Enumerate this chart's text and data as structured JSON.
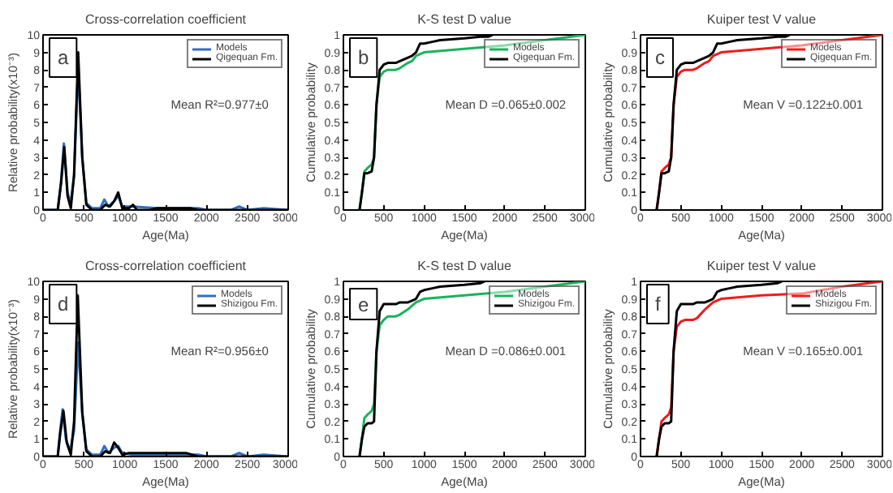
{
  "chart_data": [
    {
      "type": "line",
      "title": "Cross-correlation coefficient",
      "xlabel": "Age(Ma)",
      "ylabel": "Relative probability(x10⁻³)",
      "xlim": [
        0,
        3000
      ],
      "ylim": [
        0,
        10
      ],
      "xticks": [
        0,
        500,
        1000,
        1500,
        2000,
        2500,
        3000
      ],
      "yticks": [
        0,
        1,
        2,
        3,
        4,
        5,
        6,
        7,
        8,
        9,
        10
      ],
      "legend": "top right",
      "annotations": [
        "a",
        "Mean R²=0.977±0"
      ],
      "series": [
        {
          "name": "Models",
          "color": "#2f6ec0",
          "x": [
            0,
            180,
            220,
            255,
            300,
            340,
            380,
            430,
            480,
            530,
            600,
            700,
            750,
            800,
            870,
            920,
            970,
            1100,
            1400,
            1600,
            1900,
            2000,
            2300,
            2400,
            2500,
            2700,
            3000
          ],
          "values": [
            0,
            0,
            1.6,
            3.8,
            1.0,
            0.4,
            2,
            8.2,
            3,
            0.4,
            0.1,
            0.1,
            0.6,
            0.2,
            0.5,
            0.8,
            0.2,
            0.2,
            0.1,
            0.1,
            0.1,
            0,
            0,
            0.2,
            0,
            0.1,
            0
          ]
        },
        {
          "name": "Qigequan Fm.",
          "color": "#000000",
          "x": [
            0,
            180,
            220,
            260,
            300,
            340,
            380,
            430,
            480,
            530,
            600,
            700,
            760,
            820,
            870,
            920,
            970,
            1050,
            1100,
            1150,
            1300,
            1400,
            1600,
            1700,
            1800,
            1900,
            2000,
            3000
          ],
          "values": [
            0,
            0,
            1.5,
            3.6,
            0.8,
            0.1,
            2,
            9.0,
            3,
            0.3,
            0,
            0,
            0.3,
            0.2,
            0.5,
            1.0,
            0.1,
            0.1,
            0.3,
            0,
            0,
            0.1,
            0.1,
            0.1,
            0.1,
            0,
            0,
            0
          ]
        }
      ]
    },
    {
      "type": "line",
      "title": "K-S test D value",
      "xlabel": "Age(Ma)",
      "ylabel": "Cumulative probability",
      "xlim": [
        0,
        3000
      ],
      "ylim": [
        0,
        1
      ],
      "xticks": [
        0,
        500,
        1000,
        1500,
        2000,
        2500,
        3000
      ],
      "yticks": [
        0,
        0.1,
        0.2,
        0.3,
        0.4,
        0.5,
        0.6,
        0.7,
        0.8,
        0.9,
        1
      ],
      "legend": "top right",
      "annotations": [
        "b",
        "Mean D =0.065±0.002"
      ],
      "series": [
        {
          "name": "Models",
          "color": "#19b35a",
          "x": [
            200,
            230,
            260,
            300,
            350,
            380,
            410,
            450,
            500,
            550,
            650,
            700,
            800,
            850,
            900,
            1000,
            1500,
            2000,
            2500,
            3000
          ],
          "values": [
            0,
            0.1,
            0.22,
            0.24,
            0.26,
            0.3,
            0.6,
            0.76,
            0.79,
            0.8,
            0.8,
            0.81,
            0.84,
            0.85,
            0.88,
            0.9,
            0.92,
            0.94,
            0.97,
            1.0
          ]
        },
        {
          "name": "Qigequan Fm.",
          "color": "#000000",
          "x": [
            200,
            230,
            260,
            300,
            350,
            380,
            410,
            450,
            500,
            550,
            650,
            700,
            800,
            850,
            900,
            950,
            1000,
            1100,
            1200,
            1500,
            1700,
            1800,
            1850
          ],
          "values": [
            0,
            0.1,
            0.21,
            0.21,
            0.22,
            0.3,
            0.6,
            0.8,
            0.83,
            0.84,
            0.84,
            0.85,
            0.87,
            0.88,
            0.9,
            0.95,
            0.95,
            0.96,
            0.97,
            0.98,
            0.99,
            0.99,
            1.0
          ]
        }
      ]
    },
    {
      "type": "line",
      "title": "Kuiper test V value",
      "xlabel": "Age(Ma)",
      "ylabel": "Cumulative probability",
      "xlim": [
        0,
        3000
      ],
      "ylim": [
        0,
        1
      ],
      "xticks": [
        0,
        500,
        1000,
        1500,
        2000,
        2500,
        3000
      ],
      "yticks": [
        0,
        0.1,
        0.2,
        0.3,
        0.4,
        0.5,
        0.6,
        0.7,
        0.8,
        0.9,
        1
      ],
      "legend": "top right",
      "annotations": [
        "c",
        "Mean V =0.122±0.001"
      ],
      "series": [
        {
          "name": "Models",
          "color": "#ee1c1c",
          "x": [
            200,
            230,
            260,
            300,
            350,
            380,
            410,
            450,
            500,
            550,
            650,
            700,
            800,
            850,
            900,
            1000,
            1500,
            2000,
            2500,
            3000
          ],
          "values": [
            0,
            0.1,
            0.22,
            0.24,
            0.26,
            0.3,
            0.6,
            0.76,
            0.79,
            0.8,
            0.8,
            0.81,
            0.84,
            0.85,
            0.88,
            0.9,
            0.92,
            0.94,
            0.97,
            1.0
          ]
        },
        {
          "name": "Qigequan Fm.",
          "color": "#000000",
          "x": [
            200,
            230,
            260,
            300,
            350,
            380,
            410,
            450,
            500,
            550,
            650,
            700,
            800,
            850,
            900,
            950,
            1000,
            1100,
            1200,
            1500,
            1700,
            1800,
            1850
          ],
          "values": [
            0,
            0.1,
            0.21,
            0.21,
            0.22,
            0.3,
            0.6,
            0.8,
            0.83,
            0.84,
            0.84,
            0.85,
            0.87,
            0.88,
            0.9,
            0.95,
            0.95,
            0.96,
            0.97,
            0.98,
            0.99,
            0.99,
            1.0
          ]
        }
      ]
    },
    {
      "type": "line",
      "title": "Cross-correlation coefficient",
      "xlabel": "Age(Ma)",
      "ylabel": "Relative probability(x10⁻³)",
      "xlim": [
        0,
        3000
      ],
      "ylim": [
        0,
        10
      ],
      "xticks": [
        0,
        500,
        1000,
        1500,
        2000,
        2500,
        3000
      ],
      "yticks": [
        0,
        1,
        2,
        3,
        4,
        5,
        6,
        7,
        8,
        9,
        10
      ],
      "legend": "top right",
      "annotations": [
        "d",
        "Mean R²=0.956±0"
      ],
      "series": [
        {
          "name": "Models",
          "color": "#2f6ec0",
          "x": [
            0,
            180,
            210,
            240,
            280,
            330,
            380,
            430,
            480,
            530,
            600,
            700,
            750,
            800,
            870,
            920,
            970,
            1100,
            1400,
            1600,
            1900,
            2000,
            2300,
            2400,
            2500,
            2700,
            3000
          ],
          "values": [
            0,
            0,
            1.5,
            2.7,
            1.0,
            0.3,
            1.5,
            6.5,
            2.5,
            0.4,
            0.1,
            0.1,
            0.6,
            0.2,
            0.5,
            0.6,
            0.2,
            0.1,
            0.1,
            0.1,
            0.1,
            0,
            0,
            0.2,
            0,
            0.1,
            0
          ]
        },
        {
          "name": "Shizigou Fm.",
          "color": "#000000",
          "x": [
            0,
            180,
            210,
            250,
            290,
            340,
            380,
            425,
            480,
            530,
            600,
            700,
            760,
            820,
            870,
            920,
            970,
            1050,
            1250,
            1450,
            1650,
            1750,
            1900,
            3000
          ],
          "values": [
            0,
            0,
            1.3,
            2.6,
            0.8,
            0.1,
            2,
            9.2,
            2.5,
            0.3,
            0,
            0,
            0.3,
            0.2,
            0.8,
            0.5,
            0.1,
            0.2,
            0.2,
            0.2,
            0.2,
            0.2,
            0,
            0
          ]
        }
      ]
    },
    {
      "type": "line",
      "title": "K-S test D value",
      "xlabel": "Age(Ma)",
      "ylabel": "Cumulative probability",
      "xlim": [
        0,
        3000
      ],
      "ylim": [
        0,
        1
      ],
      "xticks": [
        0,
        500,
        1000,
        1500,
        2000,
        2500,
        3000
      ],
      "yticks": [
        0,
        0.1,
        0.2,
        0.3,
        0.4,
        0.5,
        0.6,
        0.7,
        0.8,
        0.9,
        1
      ],
      "legend": "top right",
      "annotations": [
        "e",
        "Mean D =0.086±0.001"
      ],
      "series": [
        {
          "name": "Models",
          "color": "#19b35a",
          "x": [
            200,
            230,
            260,
            300,
            350,
            380,
            410,
            450,
            500,
            550,
            650,
            700,
            800,
            850,
            900,
            1000,
            1500,
            2000,
            2500,
            3000
          ],
          "values": [
            0,
            0.1,
            0.22,
            0.24,
            0.26,
            0.3,
            0.6,
            0.75,
            0.78,
            0.8,
            0.8,
            0.81,
            0.84,
            0.86,
            0.88,
            0.9,
            0.92,
            0.94,
            0.97,
            1.0
          ]
        },
        {
          "name": "Shizigou Fm.",
          "color": "#000000",
          "x": [
            200,
            230,
            260,
            300,
            350,
            380,
            410,
            450,
            500,
            550,
            650,
            700,
            800,
            850,
            900,
            950,
            1000,
            1100,
            1200,
            1500,
            1700,
            1750
          ],
          "values": [
            0,
            0.1,
            0.17,
            0.19,
            0.19,
            0.2,
            0.6,
            0.83,
            0.87,
            0.87,
            0.87,
            0.88,
            0.88,
            0.89,
            0.9,
            0.94,
            0.95,
            0.96,
            0.97,
            0.98,
            0.99,
            1.0
          ]
        }
      ]
    },
    {
      "type": "line",
      "title": "Kuiper test V value",
      "xlabel": "Age(Ma)",
      "ylabel": "Cumulative probability",
      "xlim": [
        0,
        3000
      ],
      "ylim": [
        0,
        1
      ],
      "xticks": [
        0,
        500,
        1000,
        1500,
        2000,
        2500,
        3000
      ],
      "yticks": [
        0,
        0.1,
        0.2,
        0.3,
        0.4,
        0.5,
        0.6,
        0.7,
        0.8,
        0.9,
        1
      ],
      "legend": "top right",
      "annotations": [
        "f",
        "Mean V =0.165±0.001"
      ],
      "series": [
        {
          "name": "Models",
          "color": "#ee1c1c",
          "x": [
            200,
            230,
            260,
            300,
            350,
            380,
            410,
            450,
            500,
            550,
            650,
            700,
            800,
            850,
            900,
            1000,
            1500,
            2000,
            2500,
            3000
          ],
          "values": [
            0,
            0.1,
            0.2,
            0.22,
            0.24,
            0.28,
            0.6,
            0.74,
            0.77,
            0.78,
            0.78,
            0.79,
            0.84,
            0.86,
            0.88,
            0.9,
            0.92,
            0.93,
            0.97,
            1.0
          ]
        },
        {
          "name": "Shizigou Fm.",
          "color": "#000000",
          "x": [
            200,
            230,
            260,
            300,
            350,
            380,
            410,
            450,
            500,
            550,
            650,
            700,
            800,
            850,
            900,
            950,
            1000,
            1100,
            1200,
            1500,
            1700,
            1750
          ],
          "values": [
            0,
            0.1,
            0.17,
            0.19,
            0.19,
            0.2,
            0.6,
            0.83,
            0.87,
            0.87,
            0.87,
            0.88,
            0.88,
            0.89,
            0.9,
            0.94,
            0.95,
            0.96,
            0.97,
            0.98,
            0.99,
            1.0
          ]
        }
      ]
    }
  ]
}
